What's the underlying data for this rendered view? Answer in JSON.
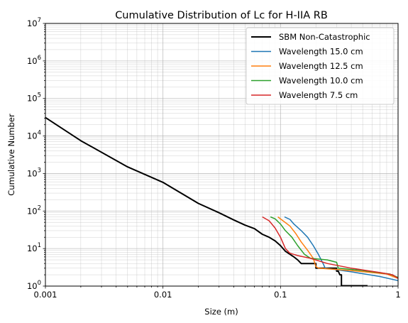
{
  "chart_data": {
    "type": "line",
    "title": "Cumulative Distribution of Lc for H-IIA RB",
    "xlabel": "Size (m)",
    "ylabel": "Cumulative Number",
    "xscale": "log",
    "yscale": "log",
    "xlim": [
      0.001,
      1
    ],
    "ylim": [
      1,
      10000000
    ],
    "grid": true,
    "legend_position": "top-right",
    "x_tick_labels": [
      "0.001",
      "0.01",
      "0.1",
      "1"
    ],
    "y_tick_labels": [
      {
        "base": "10",
        "exp": "0"
      },
      {
        "base": "10",
        "exp": "1"
      },
      {
        "base": "10",
        "exp": "2"
      },
      {
        "base": "10",
        "exp": "3"
      },
      {
        "base": "10",
        "exp": "4"
      },
      {
        "base": "10",
        "exp": "5"
      },
      {
        "base": "10",
        "exp": "6"
      },
      {
        "base": "10",
        "exp": "7"
      }
    ],
    "series": [
      {
        "name": "SBM Non-Catastrophic",
        "color": "#000000",
        "width": 2,
        "points": [
          [
            0.001,
            31000
          ],
          [
            0.002,
            7500
          ],
          [
            0.005,
            1500
          ],
          [
            0.01,
            580
          ],
          [
            0.02,
            160
          ],
          [
            0.03,
            90
          ],
          [
            0.04,
            58
          ],
          [
            0.05,
            42
          ],
          [
            0.06,
            34
          ],
          [
            0.07,
            24
          ],
          [
            0.08,
            20
          ],
          [
            0.09,
            16
          ],
          [
            0.1,
            12
          ],
          [
            0.11,
            8.5
          ],
          [
            0.13,
            6
          ],
          [
            0.14,
            5
          ],
          [
            0.15,
            4
          ],
          [
            0.2,
            4
          ],
          [
            0.2,
            3
          ],
          [
            0.3,
            3
          ],
          [
            0.3,
            2.5
          ],
          [
            0.31,
            2.5
          ],
          [
            0.32,
            2
          ],
          [
            0.33,
            2
          ],
          [
            0.33,
            1.02
          ],
          [
            0.55,
            1.02
          ]
        ]
      },
      {
        "name": "Wavelength 15.0 cm",
        "color": "#1f77b4",
        "width": 1.5,
        "points": [
          [
            0.108,
            70
          ],
          [
            0.12,
            60
          ],
          [
            0.13,
            45
          ],
          [
            0.15,
            30
          ],
          [
            0.17,
            20
          ],
          [
            0.19,
            12
          ],
          [
            0.21,
            7
          ],
          [
            0.23,
            4
          ],
          [
            0.24,
            3
          ],
          [
            0.4,
            2.4
          ],
          [
            0.7,
            1.8
          ],
          [
            1.0,
            1.4
          ]
        ]
      },
      {
        "name": "Wavelength 12.5 cm",
        "color": "#ff7f0e",
        "width": 1.5,
        "points": [
          [
            0.095,
            70
          ],
          [
            0.105,
            55
          ],
          [
            0.12,
            40
          ],
          [
            0.135,
            25
          ],
          [
            0.15,
            15
          ],
          [
            0.17,
            9
          ],
          [
            0.19,
            5.5
          ],
          [
            0.2,
            3.3
          ],
          [
            0.21,
            3
          ],
          [
            0.4,
            2.6
          ],
          [
            0.8,
            2.1
          ],
          [
            1.0,
            1.6
          ]
        ]
      },
      {
        "name": "Wavelength 10.0 cm",
        "color": "#2ca02c",
        "width": 1.5,
        "points": [
          [
            0.082,
            70
          ],
          [
            0.09,
            62
          ],
          [
            0.1,
            45
          ],
          [
            0.11,
            30
          ],
          [
            0.125,
            20
          ],
          [
            0.14,
            12
          ],
          [
            0.16,
            7
          ],
          [
            0.18,
            5.5
          ],
          [
            0.25,
            5
          ],
          [
            0.3,
            4.3
          ],
          [
            0.31,
            3
          ],
          [
            0.5,
            2.6
          ],
          [
            0.85,
            2.1
          ],
          [
            1.0,
            1.7
          ]
        ]
      },
      {
        "name": "Wavelength 7.5 cm",
        "color": "#d62728",
        "width": 1.5,
        "points": [
          [
            0.07,
            70
          ],
          [
            0.08,
            55
          ],
          [
            0.09,
            35
          ],
          [
            0.1,
            20
          ],
          [
            0.11,
            10
          ],
          [
            0.12,
            7.5
          ],
          [
            0.14,
            6.5
          ],
          [
            0.18,
            5.5
          ],
          [
            0.25,
            4
          ],
          [
            0.4,
            3
          ],
          [
            0.7,
            2.3
          ],
          [
            0.9,
            2.0
          ],
          [
            1.0,
            1.6
          ]
        ]
      }
    ]
  }
}
